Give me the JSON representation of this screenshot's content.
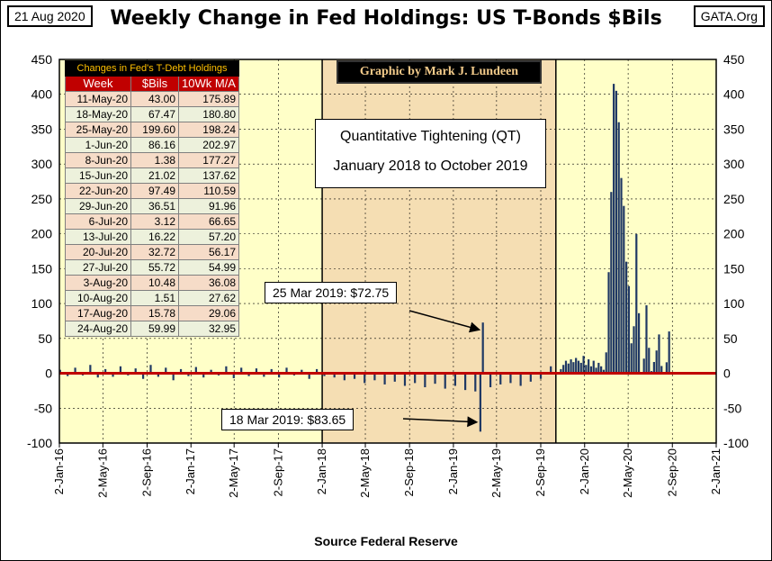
{
  "header": {
    "date": "21 Aug 2020",
    "title": "Weekly Change in Fed Holdings:  US T-Bonds $Bils",
    "site": "GATA.Org"
  },
  "footer": {
    "source": "Source Federal Reserve"
  },
  "credit": "Graphic by Mark J. Lundeen",
  "qt_box": {
    "line1": "Quantitative Tightening (QT)",
    "line2": "January 2018 to October 2019"
  },
  "annotations": [
    {
      "text": "25 Mar 2019: $72.75"
    },
    {
      "text": "18 Mar 2019: $83.65"
    }
  ],
  "table": {
    "caption": "Changes in Fed's T-Debt Holdings",
    "headers": [
      "Week",
      "$Bils",
      "10Wk M/A"
    ],
    "rows": [
      [
        "11-May-20",
        "43.00",
        "175.89"
      ],
      [
        "18-May-20",
        "67.47",
        "180.80"
      ],
      [
        "25-May-20",
        "199.60",
        "198.24"
      ],
      [
        "1-Jun-20",
        "86.16",
        "202.97"
      ],
      [
        "8-Jun-20",
        "1.38",
        "177.27"
      ],
      [
        "15-Jun-20",
        "21.02",
        "137.62"
      ],
      [
        "22-Jun-20",
        "97.49",
        "110.59"
      ],
      [
        "29-Jun-20",
        "36.51",
        "91.96"
      ],
      [
        "6-Jul-20",
        "3.12",
        "66.65"
      ],
      [
        "13-Jul-20",
        "16.22",
        "57.20"
      ],
      [
        "20-Jul-20",
        "32.72",
        "56.17"
      ],
      [
        "27-Jul-20",
        "55.72",
        "54.99"
      ],
      [
        "3-Aug-20",
        "10.48",
        "36.08"
      ],
      [
        "10-Aug-20",
        "1.51",
        "27.62"
      ],
      [
        "17-Aug-20",
        "15.78",
        "29.06"
      ],
      [
        "24-Aug-20",
        "59.99",
        "32.95"
      ]
    ]
  },
  "colors": {
    "plot_background": "#ffffc8",
    "qt_shade": "#f5deb3",
    "bar": "#1f3864",
    "zero_line": "#c00000"
  },
  "chart_data": {
    "type": "bar",
    "title": "Weekly Change in Fed Holdings:  US T-Bonds $Bils",
    "ylim": [
      -100,
      450
    ],
    "yticks": [
      -100,
      -50,
      0,
      50,
      100,
      150,
      200,
      250,
      300,
      350,
      400,
      450
    ],
    "x_range": [
      "2016-01-02",
      "2021-01-02"
    ],
    "x_tick_labels": [
      "2-Jan-16",
      "2-May-16",
      "2-Sep-16",
      "2-Jan-17",
      "2-May-17",
      "2-Sep-17",
      "2-Jan-18",
      "2-May-18",
      "2-Sep-18",
      "2-Jan-19",
      "2-May-19",
      "2-Sep-19",
      "2-Jan-20",
      "2-May-20",
      "2-Sep-20",
      "2-Jan-21"
    ],
    "x_tick_dates": [
      "2016-01-02",
      "2016-05-02",
      "2016-09-02",
      "2017-01-02",
      "2017-05-02",
      "2017-09-02",
      "2018-01-02",
      "2018-05-02",
      "2018-09-02",
      "2019-01-02",
      "2019-05-02",
      "2019-09-02",
      "2020-01-02",
      "2020-05-02",
      "2020-09-02",
      "2021-01-02"
    ],
    "shaded_period": [
      "2018-01-02",
      "2019-10-14"
    ],
    "grid": true,
    "series": [
      {
        "dates": [
          "2016-01-04",
          "2016-01-25",
          "2016-02-15",
          "2016-03-07",
          "2016-03-28",
          "2016-04-18",
          "2016-05-09",
          "2016-05-30",
          "2016-06-20",
          "2016-07-11",
          "2016-08-01",
          "2016-08-22",
          "2016-09-12",
          "2016-10-03",
          "2016-10-24",
          "2016-11-14",
          "2016-12-05",
          "2016-12-26",
          "2017-01-16",
          "2017-02-06",
          "2017-02-27",
          "2017-03-20",
          "2017-04-10",
          "2017-05-01",
          "2017-05-22",
          "2017-06-12",
          "2017-07-03",
          "2017-07-24",
          "2017-08-14",
          "2017-09-04",
          "2017-09-25",
          "2017-10-16",
          "2017-11-06",
          "2017-11-27",
          "2017-12-18",
          "2018-01-08",
          "2018-02-05",
          "2018-03-05",
          "2018-04-02",
          "2018-04-30",
          "2018-05-28",
          "2018-06-25",
          "2018-07-23",
          "2018-08-20",
          "2018-09-17",
          "2018-10-15",
          "2018-11-12",
          "2018-12-10",
          "2019-01-07",
          "2019-02-04",
          "2019-03-04",
          "2019-03-18",
          "2019-03-25",
          "2019-04-15",
          "2019-05-13",
          "2019-06-10",
          "2019-07-08",
          "2019-08-05",
          "2019-09-02",
          "2019-09-30",
          "2019-10-21",
          "2019-10-28",
          "2019-11-04",
          "2019-11-11",
          "2019-11-18",
          "2019-11-25",
          "2019-12-02",
          "2019-12-09",
          "2019-12-16",
          "2019-12-23",
          "2019-12-30",
          "2020-01-06",
          "2020-01-13",
          "2020-01-20",
          "2020-01-27",
          "2020-02-03",
          "2020-02-10",
          "2020-02-17",
          "2020-02-24",
          "2020-03-02",
          "2020-03-09",
          "2020-03-16",
          "2020-03-23",
          "2020-03-30",
          "2020-04-06",
          "2020-04-13",
          "2020-04-20",
          "2020-04-27",
          "2020-05-04",
          "2020-05-11",
          "2020-05-18",
          "2020-05-25",
          "2020-06-01",
          "2020-06-08",
          "2020-06-15",
          "2020-06-22",
          "2020-06-29",
          "2020-07-06",
          "2020-07-13",
          "2020-07-20",
          "2020-07-27",
          "2020-08-03",
          "2020-08-10",
          "2020-08-17",
          "2020-08-24"
        ],
        "values": [
          5,
          -4,
          8,
          -3,
          12,
          -6,
          6,
          -5,
          10,
          -3,
          7,
          -8,
          12,
          -5,
          8,
          -10,
          6,
          -4,
          9,
          -6,
          5,
          -3,
          10,
          -7,
          8,
          -4,
          7,
          -5,
          6,
          -6,
          8,
          -3,
          5,
          -8,
          6,
          -4,
          -6,
          -10,
          -8,
          -14,
          -10,
          -16,
          -12,
          -18,
          -14,
          -20,
          -15,
          -22,
          -18,
          -24,
          -26,
          -83.65,
          72.75,
          -20,
          -16,
          -14,
          -18,
          -12,
          -8,
          10,
          2,
          6,
          12,
          18,
          14,
          20,
          16,
          22,
          18,
          15,
          25,
          12,
          20,
          10,
          18,
          8,
          15,
          10,
          5,
          30,
          145,
          260,
          415,
          405,
          360,
          280,
          240,
          160,
          125,
          43,
          67.47,
          199.6,
          86.16,
          1.38,
          21.02,
          97.49,
          36.51,
          3.12,
          16.22,
          32.72,
          55.72,
          10.48,
          1.51,
          15.78,
          59.99
        ]
      }
    ]
  }
}
